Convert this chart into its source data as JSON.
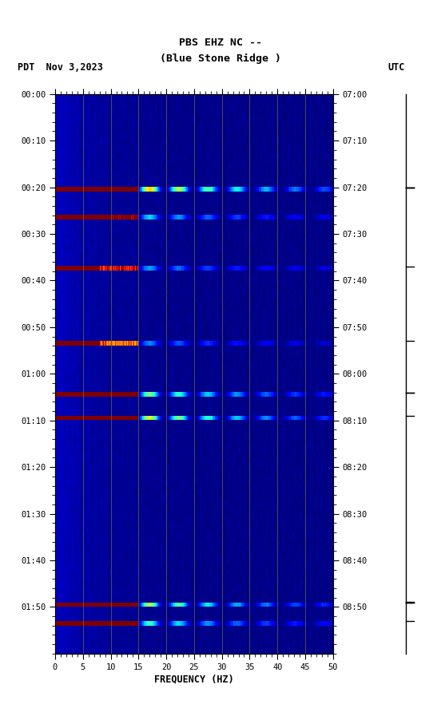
{
  "title_line1": "PBS EHZ NC --",
  "title_line2": "(Blue Stone Ridge )",
  "date_label": "PDT  Nov 3,2023",
  "utc_label": "UTC",
  "xlabel": "FREQUENCY (HZ)",
  "freq_min": 0,
  "freq_max": 50,
  "freq_ticks": [
    0,
    5,
    10,
    15,
    20,
    25,
    30,
    35,
    40,
    45,
    50
  ],
  "time_labels_left": [
    "00:00",
    "00:10",
    "00:20",
    "00:30",
    "00:40",
    "00:50",
    "01:00",
    "01:10",
    "01:20",
    "01:30",
    "01:40",
    "01:50"
  ],
  "time_labels_right": [
    "07:00",
    "07:10",
    "07:20",
    "07:30",
    "07:40",
    "07:50",
    "08:00",
    "08:10",
    "08:20",
    "08:30",
    "08:40",
    "08:50"
  ],
  "n_time_minutes": 120,
  "n_freq_bins": 500,
  "bg_dark_blue": "#000080",
  "bg_navy": "#000050",
  "event_minutes": [
    20,
    26,
    37,
    53,
    64,
    69,
    109,
    113
  ],
  "event_strengths": [
    2.5,
    1.2,
    1.0,
    0.9,
    1.8,
    2.2,
    2.0,
    1.5
  ],
  "scale_tick_minutes": [
    20,
    37,
    53,
    64,
    69,
    109,
    113
  ],
  "scale_tick_double": [
    20,
    64,
    109
  ],
  "usgs_green": "#1a6b3c",
  "fig_bg": "white"
}
